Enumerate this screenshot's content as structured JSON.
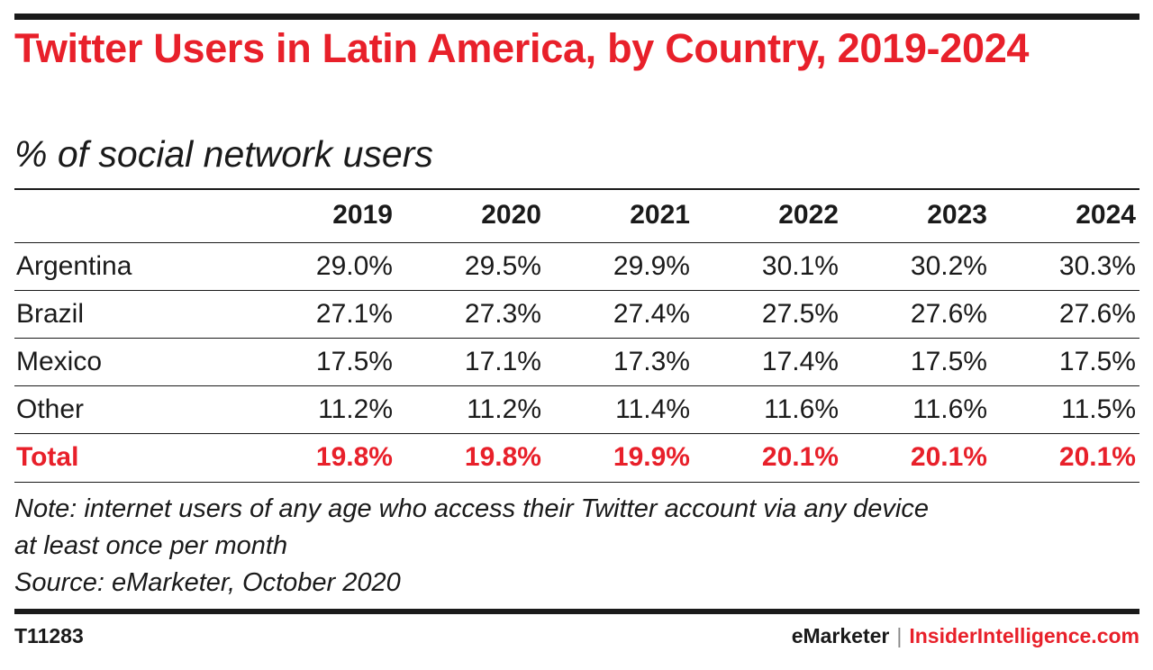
{
  "chart_data": {
    "type": "table",
    "title": "Twitter Users in Latin America, by Country, 2019-2024",
    "subtitle": "% of social network users",
    "columns": [
      "2019",
      "2020",
      "2021",
      "2022",
      "2023",
      "2024"
    ],
    "rows": [
      {
        "label": "Argentina",
        "values": [
          "29.0%",
          "29.5%",
          "29.9%",
          "30.1%",
          "30.2%",
          "30.3%"
        ]
      },
      {
        "label": "Brazil",
        "values": [
          "27.1%",
          "27.3%",
          "27.4%",
          "27.5%",
          "27.6%",
          "27.6%"
        ]
      },
      {
        "label": "Mexico",
        "values": [
          "17.5%",
          "17.1%",
          "17.3%",
          "17.4%",
          "17.5%",
          "17.5%"
        ]
      },
      {
        "label": "Other",
        "values": [
          "11.2%",
          "11.2%",
          "11.4%",
          "11.6%",
          "11.6%",
          "11.5%"
        ]
      }
    ],
    "total": {
      "label": "Total",
      "values": [
        "19.8%",
        "19.8%",
        "19.9%",
        "20.1%",
        "20.1%",
        "20.1%"
      ]
    },
    "total_color": "#e8202a"
  },
  "note": {
    "line1": "Note: internet users of any age who access their Twitter account via any device",
    "line2": "at least once per month",
    "source": "Source: eMarketer, October 2020"
  },
  "footer": {
    "chart_id": "T11283",
    "brand": "eMarketer",
    "separator": "|",
    "site": "InsiderIntelligence.com"
  },
  "colors": {
    "accent": "#e8202a",
    "text": "#1a1a1a"
  }
}
